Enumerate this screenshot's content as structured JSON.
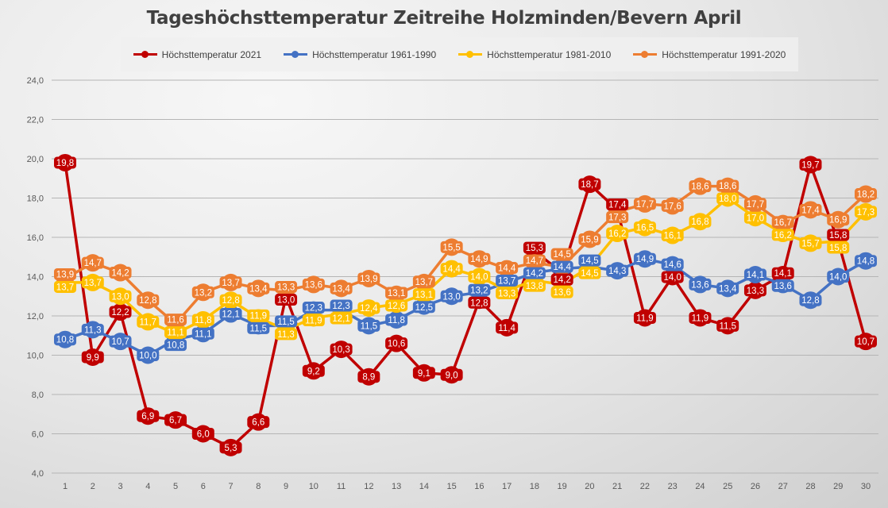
{
  "chart_data": {
    "type": "line",
    "title": "Tageshöchsttemperatur Zeitreihe Holzminden/Bevern April",
    "xlabel": "",
    "ylabel": "",
    "ylim": [
      4,
      24
    ],
    "yticks": [
      "4,0",
      "6,0",
      "8,0",
      "10,0",
      "12,0",
      "14,0",
      "16,0",
      "18,0",
      "20,0",
      "22,0",
      "24,0"
    ],
    "ytick_values": [
      4,
      6,
      8,
      10,
      12,
      14,
      16,
      18,
      20,
      22,
      24
    ],
    "grid": true,
    "legend": "top",
    "x": [
      1,
      2,
      3,
      4,
      5,
      6,
      7,
      8,
      9,
      10,
      11,
      12,
      13,
      14,
      15,
      16,
      17,
      18,
      19,
      20,
      21,
      22,
      23,
      24,
      25,
      26,
      27,
      28,
      29,
      30
    ],
    "series": [
      {
        "name": "Höchsttemperatur 2021",
        "color": "#c00000",
        "values": [
          19.8,
          9.9,
          12.2,
          6.9,
          6.7,
          6.0,
          5.3,
          6.6,
          13.0,
          9.2,
          10.3,
          8.9,
          10.6,
          9.1,
          9.0,
          12.8,
          11.4,
          15.3,
          14.2,
          18.7,
          17.4,
          11.9,
          14.0,
          11.9,
          11.5,
          13.3,
          14.1,
          19.7,
          15.8,
          10.7
        ]
      },
      {
        "name": "Höchsttemperatur 1961-1990",
        "color": "#4472c4",
        "values": [
          10.8,
          11.3,
          10.7,
          10.0,
          10.8,
          11.1,
          12.1,
          11.5,
          11.5,
          12.3,
          12.3,
          11.5,
          11.8,
          12.5,
          13.0,
          13.2,
          13.7,
          14.2,
          14.4,
          14.5,
          14.3,
          14.9,
          14.6,
          13.6,
          13.4,
          14.1,
          13.6,
          12.8,
          14.0,
          14.8
        ]
      },
      {
        "name": "Höchsttemperatur 1981-2010",
        "color": "#ffc000",
        "values": [
          13.7,
          13.7,
          13.0,
          11.7,
          11.1,
          11.8,
          12.8,
          11.9,
          11.3,
          11.9,
          12.1,
          12.4,
          12.6,
          13.1,
          14.4,
          14.0,
          13.3,
          13.8,
          13.6,
          14.5,
          16.2,
          16.5,
          16.1,
          16.8,
          18.0,
          17.0,
          16.2,
          15.7,
          15.8,
          17.3
        ]
      },
      {
        "name": "Höchsttemperatur 1991-2020",
        "color": "#ed7d31",
        "values": [
          13.9,
          14.7,
          14.2,
          12.8,
          11.6,
          13.2,
          13.7,
          13.4,
          13.3,
          13.6,
          13.4,
          13.9,
          13.1,
          13.7,
          15.5,
          14.9,
          14.4,
          14.7,
          14.5,
          15.9,
          17.3,
          17.7,
          17.6,
          18.6,
          18.6,
          17.7,
          16.7,
          17.4,
          16.9,
          18.2
        ]
      }
    ]
  }
}
